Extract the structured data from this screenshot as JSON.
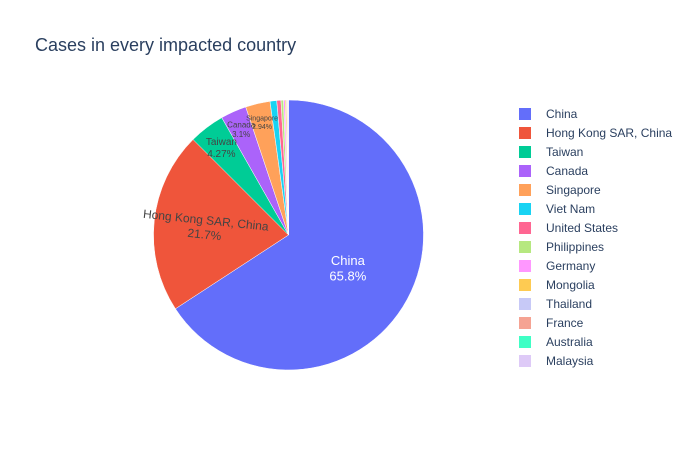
{
  "chart_data": {
    "type": "pie",
    "title": "Cases in every impacted country",
    "slices": [
      {
        "label": "China",
        "value": 65.8,
        "color": "#636efa",
        "display": "65.8%"
      },
      {
        "label": "Hong Kong SAR, China",
        "value": 21.7,
        "color": "#ef553b",
        "display": "21.7%"
      },
      {
        "label": "Taiwan",
        "value": 4.27,
        "color": "#00cc96",
        "display": "4.27%"
      },
      {
        "label": "Canada",
        "value": 3.1,
        "color": "#ab63fa",
        "display": "3.1%"
      },
      {
        "label": "Singapore",
        "value": 2.94,
        "color": "#ffa15a",
        "display": "2.94%"
      },
      {
        "label": "Viet Nam",
        "value": 0.8,
        "color": "#19d3f3",
        "display": ""
      },
      {
        "label": "United States",
        "value": 0.5,
        "color": "#ff6692",
        "display": ""
      },
      {
        "label": "Philippines",
        "value": 0.3,
        "color": "#b6e880",
        "display": ""
      },
      {
        "label": "Germany",
        "value": 0.2,
        "color": "#ff97ff",
        "display": ""
      },
      {
        "label": "Mongolia",
        "value": 0.15,
        "color": "#fecb52",
        "display": ""
      },
      {
        "label": "Thailand",
        "value": 0.1,
        "color": "#c7c9f7",
        "display": ""
      },
      {
        "label": "France",
        "value": 0.08,
        "color": "#f5a393",
        "display": ""
      },
      {
        "label": "Australia",
        "value": 0.04,
        "color": "#3fffc5",
        "display": ""
      },
      {
        "label": "Malaysia",
        "value": 0.02,
        "color": "#decaf7",
        "display": ""
      }
    ],
    "legend_position": "right",
    "direction": "clockwise"
  }
}
